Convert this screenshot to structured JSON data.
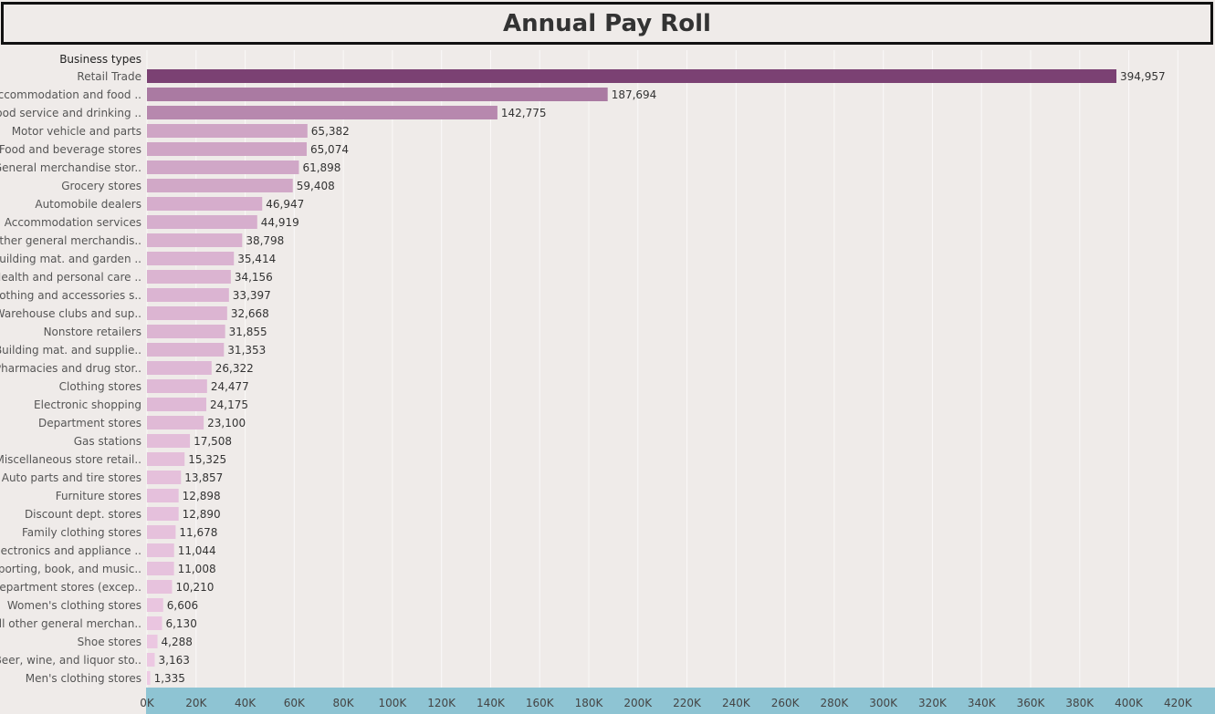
{
  "title": "Annual Pay Roll",
  "chart_data": {
    "type": "bar",
    "orientation": "horizontal",
    "title": "Annual Pay Roll",
    "ylabel": "Business types",
    "xlabel": "",
    "xlim": [
      0,
      420000
    ],
    "x_ticks": [
      "0K",
      "20K",
      "40K",
      "60K",
      "80K",
      "100K",
      "120K",
      "140K",
      "160K",
      "180K",
      "200K",
      "220K",
      "240K",
      "260K",
      "280K",
      "300K",
      "320K",
      "340K",
      "360K",
      "380K",
      "400K",
      "420K"
    ],
    "categories": [
      "Retail Trade",
      "Accommodation and food ..",
      "Food service and drinking ..",
      "Motor vehicle and parts",
      "Food and beverage stores",
      "General merchandise stor..",
      "Grocery stores",
      "Automobile dealers",
      "Accommodation services",
      "Other general merchandis..",
      "Building mat. and garden ..",
      "Health and personal care ..",
      "Clothing and accessories s..",
      "Warehouse clubs and sup..",
      "Nonstore retailers",
      "Building mat. and supplie..",
      "Pharmacies and drug stor..",
      "Clothing stores",
      "Electronic shopping",
      "Department stores",
      "Gas stations",
      "Miscellaneous store retail..",
      "Auto parts and tire stores",
      "Furniture stores",
      "Discount dept. stores",
      "Family clothing stores",
      "Electronics and appliance ..",
      "Sporting, book, and  music..",
      "Department stores (excep..",
      "Women's clothing stores",
      "All other general merchan..",
      "Shoe stores",
      "Beer, wine, and liquor sto..",
      "Men's clothing stores"
    ],
    "values": [
      394957,
      187694,
      142775,
      65382,
      65074,
      61898,
      59408,
      46947,
      44919,
      38798,
      35414,
      34156,
      33397,
      32668,
      31855,
      31353,
      26322,
      24477,
      24175,
      23100,
      17508,
      15325,
      13857,
      12898,
      12890,
      11678,
      11044,
      11008,
      10210,
      6606,
      6130,
      4288,
      3163,
      1335
    ],
    "value_labels": [
      "394,957",
      "187,694",
      "142,775",
      "65,382",
      "65,074",
      "61,898",
      "59,408",
      "46,947",
      "44,919",
      "38,798",
      "35,414",
      "34,156",
      "33,397",
      "32,668",
      "31,855",
      "31,353",
      "26,322",
      "24,477",
      "24,175",
      "23,100",
      "17,508",
      "15,325",
      "13,857",
      "12,898",
      "12,890",
      "11,678",
      "11,044",
      "11,008",
      "10,210",
      "6,606",
      "6,130",
      "4,288",
      "3,163",
      "1,335"
    ],
    "color_low": "#f0cde6",
    "color_high": "#7b4173",
    "axis_band_color": "#8ec4d3",
    "grid": true
  }
}
